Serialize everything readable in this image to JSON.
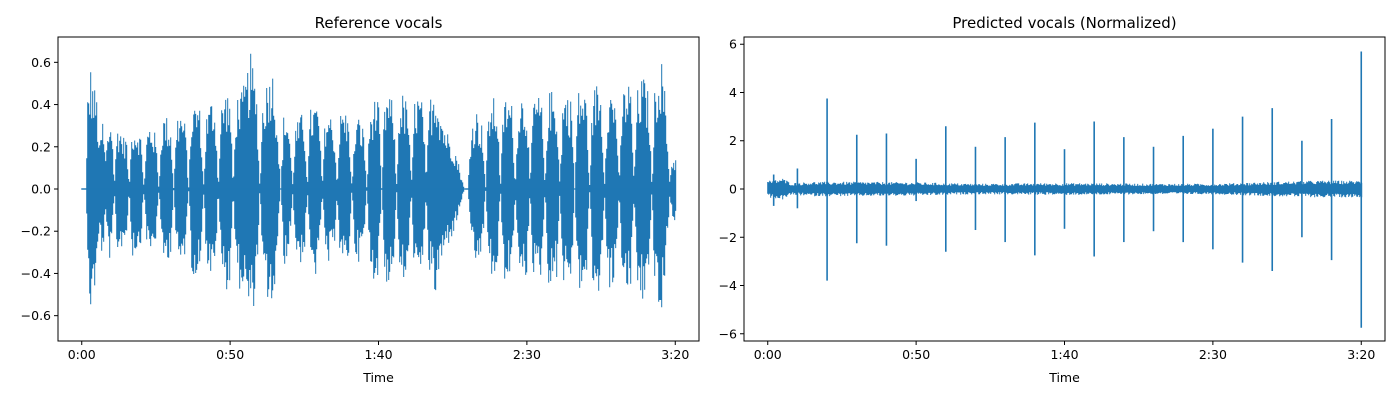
{
  "chart_data": [
    {
      "type": "line",
      "title": "Reference vocals",
      "xlabel": "Time",
      "ylabel": "",
      "xlim": [
        -8,
        208
      ],
      "ylim": [
        -0.72,
        0.72
      ],
      "x_ticks": [
        {
          "value": 0,
          "label": "0:00"
        },
        {
          "value": 50,
          "label": "0:50"
        },
        {
          "value": 100,
          "label": "1:40"
        },
        {
          "value": 150,
          "label": "2:30"
        },
        {
          "value": 200,
          "label": "3:20"
        }
      ],
      "y_ticks": [
        {
          "value": -0.6,
          "label": "−0.6"
        },
        {
          "value": -0.4,
          "label": "−0.4"
        },
        {
          "value": -0.2,
          "label": "−0.2"
        },
        {
          "value": 0.0,
          "label": "0.0"
        },
        {
          "value": 0.2,
          "label": "0.2"
        },
        {
          "value": 0.4,
          "label": "0.4"
        },
        {
          "value": 0.6,
          "label": "0.6"
        }
      ],
      "grid": false,
      "line_color": "#1f77b4",
      "waveform": {
        "duration_s": 200,
        "envelope": [
          [
            0,
            0.0
          ],
          [
            1.5,
            0.0
          ],
          [
            2,
            0.45
          ],
          [
            3,
            0.59
          ],
          [
            4,
            0.5
          ],
          [
            5,
            0.46
          ],
          [
            6,
            0.2
          ],
          [
            7,
            0.35
          ],
          [
            8,
            0.15
          ],
          [
            9,
            0.3
          ],
          [
            10,
            0.38
          ],
          [
            11,
            0.02
          ],
          [
            12,
            0.32
          ],
          [
            13,
            0.3
          ],
          [
            14,
            0.25
          ],
          [
            15,
            0.27
          ],
          [
            16,
            0.0
          ],
          [
            17,
            0.33
          ],
          [
            18,
            0.3
          ],
          [
            19,
            0.3
          ],
          [
            20,
            0.25
          ],
          [
            21,
            0.0
          ],
          [
            22,
            0.28
          ],
          [
            23,
            0.32
          ],
          [
            24,
            0.3
          ],
          [
            25,
            0.25
          ],
          [
            26,
            0.0
          ],
          [
            27,
            0.33
          ],
          [
            28,
            0.36
          ],
          [
            29,
            0.34
          ],
          [
            30,
            0.3
          ],
          [
            31,
            0.0
          ],
          [
            32,
            0.35
          ],
          [
            33,
            0.38
          ],
          [
            34,
            0.36
          ],
          [
            35,
            0.3
          ],
          [
            36,
            0.0
          ],
          [
            37,
            0.39
          ],
          [
            38,
            0.41
          ],
          [
            39,
            0.43
          ],
          [
            40,
            0.37
          ],
          [
            41,
            0.0
          ],
          [
            42,
            0.36
          ],
          [
            43,
            0.4
          ],
          [
            44,
            0.45
          ],
          [
            45,
            0.4
          ],
          [
            46,
            0.0
          ],
          [
            47,
            0.4
          ],
          [
            48,
            0.46
          ],
          [
            49,
            0.48
          ],
          [
            50,
            0.44
          ],
          [
            51,
            0.0
          ],
          [
            52,
            0.42
          ],
          [
            53,
            0.48
          ],
          [
            54,
            0.46
          ],
          [
            55,
            0.52
          ],
          [
            56,
            0.58
          ],
          [
            57,
            0.65
          ],
          [
            58,
            0.55
          ],
          [
            59,
            0.45
          ],
          [
            60,
            0.0
          ],
          [
            61,
            0.45
          ],
          [
            62,
            0.5
          ],
          [
            63,
            0.55
          ],
          [
            64,
            0.6
          ],
          [
            65,
            0.5
          ],
          [
            66,
            0.3
          ],
          [
            67,
            0.0
          ],
          [
            68,
            0.35
          ],
          [
            69,
            0.38
          ],
          [
            70,
            0.28
          ],
          [
            71,
            0.02
          ],
          [
            72,
            0.3
          ],
          [
            73,
            0.33
          ],
          [
            74,
            0.36
          ],
          [
            75,
            0.32
          ],
          [
            76,
            0.02
          ],
          [
            77,
            0.38
          ],
          [
            78,
            0.4
          ],
          [
            79,
            0.42
          ],
          [
            80,
            0.35
          ],
          [
            81,
            0.0
          ],
          [
            82,
            0.36
          ],
          [
            83,
            0.38
          ],
          [
            84,
            0.35
          ],
          [
            85,
            0.3
          ],
          [
            86,
            0.02
          ],
          [
            87,
            0.35
          ],
          [
            88,
            0.4
          ],
          [
            89,
            0.37
          ],
          [
            90,
            0.32
          ],
          [
            91,
            0.0
          ],
          [
            92,
            0.3
          ],
          [
            93,
            0.35
          ],
          [
            94,
            0.33
          ],
          [
            95,
            0.28
          ],
          [
            96,
            0.0
          ],
          [
            97,
            0.35
          ],
          [
            98,
            0.42
          ],
          [
            99,
            0.44
          ],
          [
            100,
            0.4
          ],
          [
            101,
            0.0
          ],
          [
            102,
            0.42
          ],
          [
            103,
            0.46
          ],
          [
            104,
            0.44
          ],
          [
            105,
            0.4
          ],
          [
            106,
            0.0
          ],
          [
            107,
            0.44
          ],
          [
            108,
            0.46
          ],
          [
            109,
            0.43
          ],
          [
            110,
            0.4
          ],
          [
            111,
            0.0
          ],
          [
            112,
            0.42
          ],
          [
            113,
            0.46
          ],
          [
            114,
            0.44
          ],
          [
            115,
            0.4
          ],
          [
            116,
            0.02
          ],
          [
            117,
            0.42
          ],
          [
            118,
            0.47
          ],
          [
            119,
            0.53
          ],
          [
            120,
            0.45
          ],
          [
            121,
            0.38
          ],
          [
            122,
            0.32
          ],
          [
            123,
            0.28
          ],
          [
            124,
            0.25
          ],
          [
            125,
            0.22
          ],
          [
            126,
            0.18
          ],
          [
            127,
            0.12
          ],
          [
            128,
            0.05
          ],
          [
            129,
            0.0
          ],
          [
            130,
            0.0
          ],
          [
            131,
            0.28
          ],
          [
            132,
            0.35
          ],
          [
            133,
            0.38
          ],
          [
            134,
            0.34
          ],
          [
            135,
            0.3
          ],
          [
            136,
            0.0
          ],
          [
            137,
            0.4
          ],
          [
            138,
            0.42
          ],
          [
            139,
            0.44
          ],
          [
            140,
            0.4
          ],
          [
            141,
            0.0
          ],
          [
            142,
            0.42
          ],
          [
            143,
            0.45
          ],
          [
            144,
            0.43
          ],
          [
            145,
            0.4
          ],
          [
            146,
            0.0
          ],
          [
            147,
            0.43
          ],
          [
            148,
            0.46
          ],
          [
            149,
            0.44
          ],
          [
            150,
            0.42
          ],
          [
            151,
            0.0
          ],
          [
            152,
            0.43
          ],
          [
            153,
            0.46
          ],
          [
            154,
            0.44
          ],
          [
            155,
            0.4
          ],
          [
            156,
            0.0
          ],
          [
            157,
            0.44
          ],
          [
            158,
            0.48
          ],
          [
            159,
            0.45
          ],
          [
            160,
            0.42
          ],
          [
            161,
            0.02
          ],
          [
            162,
            0.44
          ],
          [
            163,
            0.47
          ],
          [
            164,
            0.45
          ],
          [
            165,
            0.42
          ],
          [
            166,
            0.0
          ],
          [
            167,
            0.46
          ],
          [
            168,
            0.49
          ],
          [
            169,
            0.47
          ],
          [
            170,
            0.44
          ],
          [
            171,
            0.0
          ],
          [
            172,
            0.45
          ],
          [
            173,
            0.5
          ],
          [
            174,
            0.52
          ],
          [
            175,
            0.45
          ],
          [
            176,
            0.0
          ],
          [
            177,
            0.45
          ],
          [
            178,
            0.48
          ],
          [
            179,
            0.47
          ],
          [
            180,
            0.42
          ],
          [
            181,
            0.0
          ],
          [
            182,
            0.45
          ],
          [
            183,
            0.5
          ],
          [
            184,
            0.52
          ],
          [
            185,
            0.47
          ],
          [
            186,
            0.02
          ],
          [
            187,
            0.47
          ],
          [
            188,
            0.5
          ],
          [
            189,
            0.55
          ],
          [
            190,
            0.5
          ],
          [
            191,
            0.45
          ],
          [
            192,
            0.0
          ],
          [
            193,
            0.5
          ],
          [
            194,
            0.58
          ],
          [
            195,
            0.64
          ],
          [
            196,
            0.55
          ],
          [
            197,
            0.3
          ],
          [
            198,
            0.05
          ],
          [
            199,
            0.16
          ],
          [
            200,
            0.15
          ],
          [
            200.3,
            0.0
          ]
        ]
      }
    },
    {
      "type": "line",
      "title": "Predicted vocals (Normalized)",
      "xlabel": "Time",
      "ylabel": "",
      "xlim": [
        -8,
        208
      ],
      "ylim": [
        -6.3,
        6.3
      ],
      "x_ticks": [
        {
          "value": 0,
          "label": "0:00"
        },
        {
          "value": 50,
          "label": "0:50"
        },
        {
          "value": 100,
          "label": "1:40"
        },
        {
          "value": 150,
          "label": "2:30"
        },
        {
          "value": 200,
          "label": "3:20"
        }
      ],
      "y_ticks": [
        {
          "value": -6,
          "label": "−6"
        },
        {
          "value": -4,
          "label": "−4"
        },
        {
          "value": -2,
          "label": "−2"
        },
        {
          "value": 0,
          "label": "0"
        },
        {
          "value": 2,
          "label": "2"
        },
        {
          "value": 4,
          "label": "4"
        },
        {
          "value": 6,
          "label": "6"
        }
      ],
      "grid": false,
      "line_color": "#1f77b4",
      "waveform": {
        "duration_s": 200,
        "envelope": [
          [
            0,
            0.35
          ],
          [
            3,
            0.4
          ],
          [
            5,
            0.45
          ],
          [
            8,
            0.25
          ],
          [
            15,
            0.3
          ],
          [
            30,
            0.3
          ],
          [
            50,
            0.28
          ],
          [
            70,
            0.22
          ],
          [
            100,
            0.25
          ],
          [
            130,
            0.22
          ],
          [
            150,
            0.22
          ],
          [
            170,
            0.3
          ],
          [
            185,
            0.35
          ],
          [
            200,
            0.35
          ],
          [
            200.3,
            0.0
          ]
        ],
        "spikes": [
          {
            "t": 2,
            "up": 0.6,
            "down": -0.7
          },
          {
            "t": 10,
            "up": 0.85,
            "down": -0.8
          },
          {
            "t": 20,
            "up": 3.75,
            "down": -3.8
          },
          {
            "t": 30,
            "up": 2.25,
            "down": -2.25
          },
          {
            "t": 40,
            "up": 2.3,
            "down": -2.35
          },
          {
            "t": 50,
            "up": 1.25,
            "down": -0.5
          },
          {
            "t": 60,
            "up": 2.6,
            "down": -2.6
          },
          {
            "t": 70,
            "up": 1.75,
            "down": -1.7
          },
          {
            "t": 80,
            "up": 2.15,
            "down": -2.2
          },
          {
            "t": 90,
            "up": 2.75,
            "down": -2.75
          },
          {
            "t": 100,
            "up": 1.65,
            "down": -1.65
          },
          {
            "t": 110,
            "up": 2.8,
            "down": -2.8
          },
          {
            "t": 120,
            "up": 2.15,
            "down": -2.2
          },
          {
            "t": 130,
            "up": 1.75,
            "down": -1.75
          },
          {
            "t": 140,
            "up": 2.2,
            "down": -2.2
          },
          {
            "t": 150,
            "up": 2.5,
            "down": -2.5
          },
          {
            "t": 160,
            "up": 3.0,
            "down": -3.05
          },
          {
            "t": 170,
            "up": 3.35,
            "down": -3.4
          },
          {
            "t": 180,
            "up": 2.0,
            "down": -2.0
          },
          {
            "t": 190,
            "up": 2.9,
            "down": -2.95
          },
          {
            "t": 200,
            "up": 5.7,
            "down": -5.75
          }
        ]
      }
    }
  ]
}
